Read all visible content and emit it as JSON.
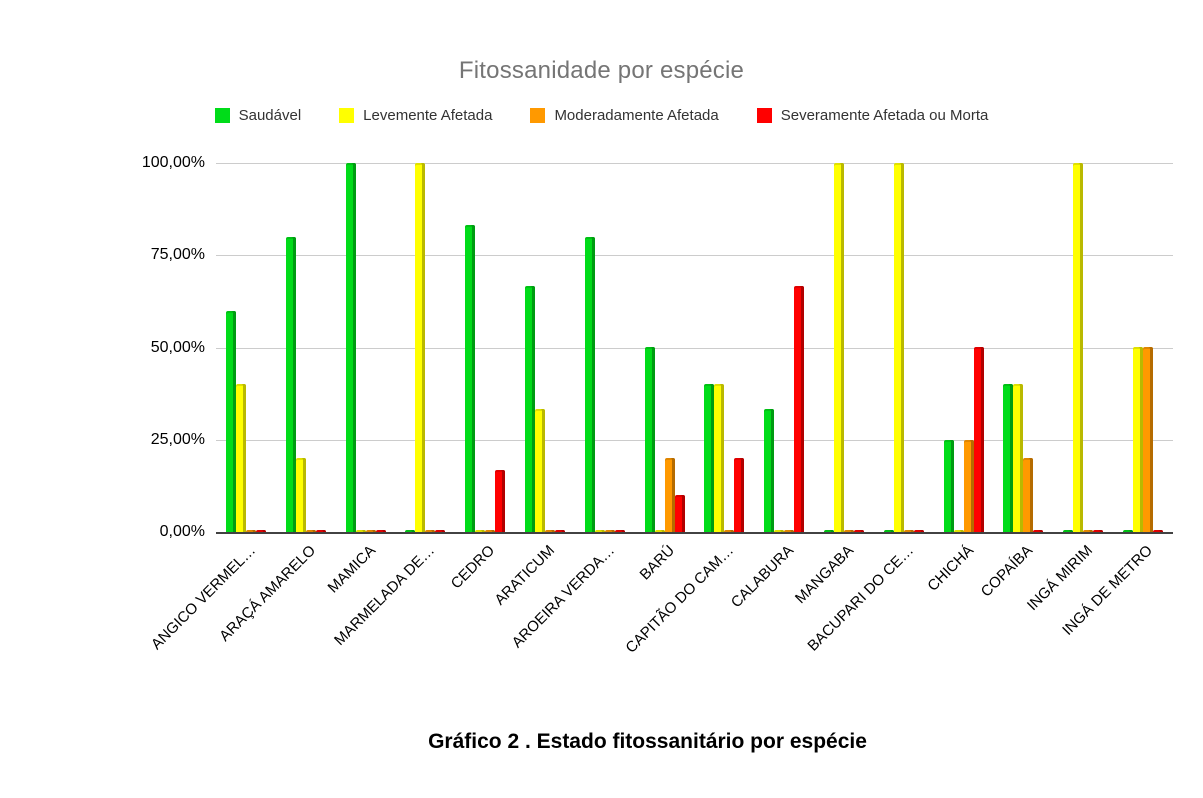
{
  "title": "Fitossanidade por espécie",
  "caption": "Gráfico 2 . Estado fitossanitário por espécie",
  "colors": {
    "background": "#ffffff",
    "title_text": "#757575",
    "legend_text": "#333333",
    "axis_text": "#000000",
    "gridline": "#cccccc",
    "axis_line": "#424242",
    "saudavel": "#00DC19",
    "levemente_afetada": "#FFFF00",
    "moderadamente_afetada": "#FF9900",
    "severamente_afetada": "#FF0000"
  },
  "y_axis": {
    "ticks": [
      {
        "label": "100,00%",
        "value": 100
      },
      {
        "label": "75,00%",
        "value": 75
      },
      {
        "label": "50,00%",
        "value": 50
      },
      {
        "label": "25,00%",
        "value": 25
      },
      {
        "label": "0,00%",
        "value": 0
      }
    ]
  },
  "chart_data": {
    "type": "bar",
    "title": "Fitossanidade por espécie",
    "xlabel": "",
    "ylabel": "",
    "values_unit": "percent",
    "ylim": [
      0,
      100
    ],
    "y_tick_labels": [
      "100,00%",
      "75,00%",
      "50,00%",
      "25,00%",
      "0,00%"
    ],
    "grid": true,
    "legend_position": "top",
    "categories": [
      "ANGICO VERMEL…",
      "ARAÇÁ AMARELO",
      "MAMICA",
      "MARMELADA DE…",
      "CEDRO",
      "ARATICUM",
      "AROEIRA VERDA…",
      "BARÚ",
      "CAPITÃO DO CAM…",
      "CALABURA",
      "MANGABA",
      "BACUPARI DO CE…",
      "CHICHÁ",
      "COPAÍBA",
      "INGÁ MIRIM",
      "INGÁ DE METRO"
    ],
    "series": [
      {
        "name": "Saudável",
        "key": "saudavel",
        "color": "#00DC19",
        "edge_color": "#009C12",
        "values": [
          60,
          80,
          100,
          0,
          83.3,
          66.7,
          80,
          50,
          40,
          33.3,
          0,
          0,
          25,
          40,
          0,
          0
        ]
      },
      {
        "name": "Levemente Afetada",
        "key": "levemente-afetada",
        "color": "#FFFF00",
        "edge_color": "#B9B900",
        "values": [
          40,
          20,
          0,
          100,
          0,
          33.3,
          0,
          0,
          40,
          0,
          100,
          100,
          0,
          40,
          100,
          50
        ]
      },
      {
        "name": "Moderadamente Afetada",
        "key": "moderadamente-afetada",
        "color": "#FF9900",
        "edge_color": "#B56B00",
        "values": [
          0,
          0,
          0,
          0,
          0,
          0,
          0,
          20,
          0,
          0,
          0,
          0,
          25,
          20,
          0,
          50
        ]
      },
      {
        "name": "Severamente Afetada ou Morta",
        "key": "severamente-afetada-ou-morta",
        "color": "#FF0000",
        "edge_color": "#B20000",
        "values": [
          0,
          0,
          0,
          0,
          16.7,
          0,
          0,
          10,
          20,
          66.7,
          0,
          0,
          50,
          0,
          0,
          0
        ]
      }
    ]
  }
}
